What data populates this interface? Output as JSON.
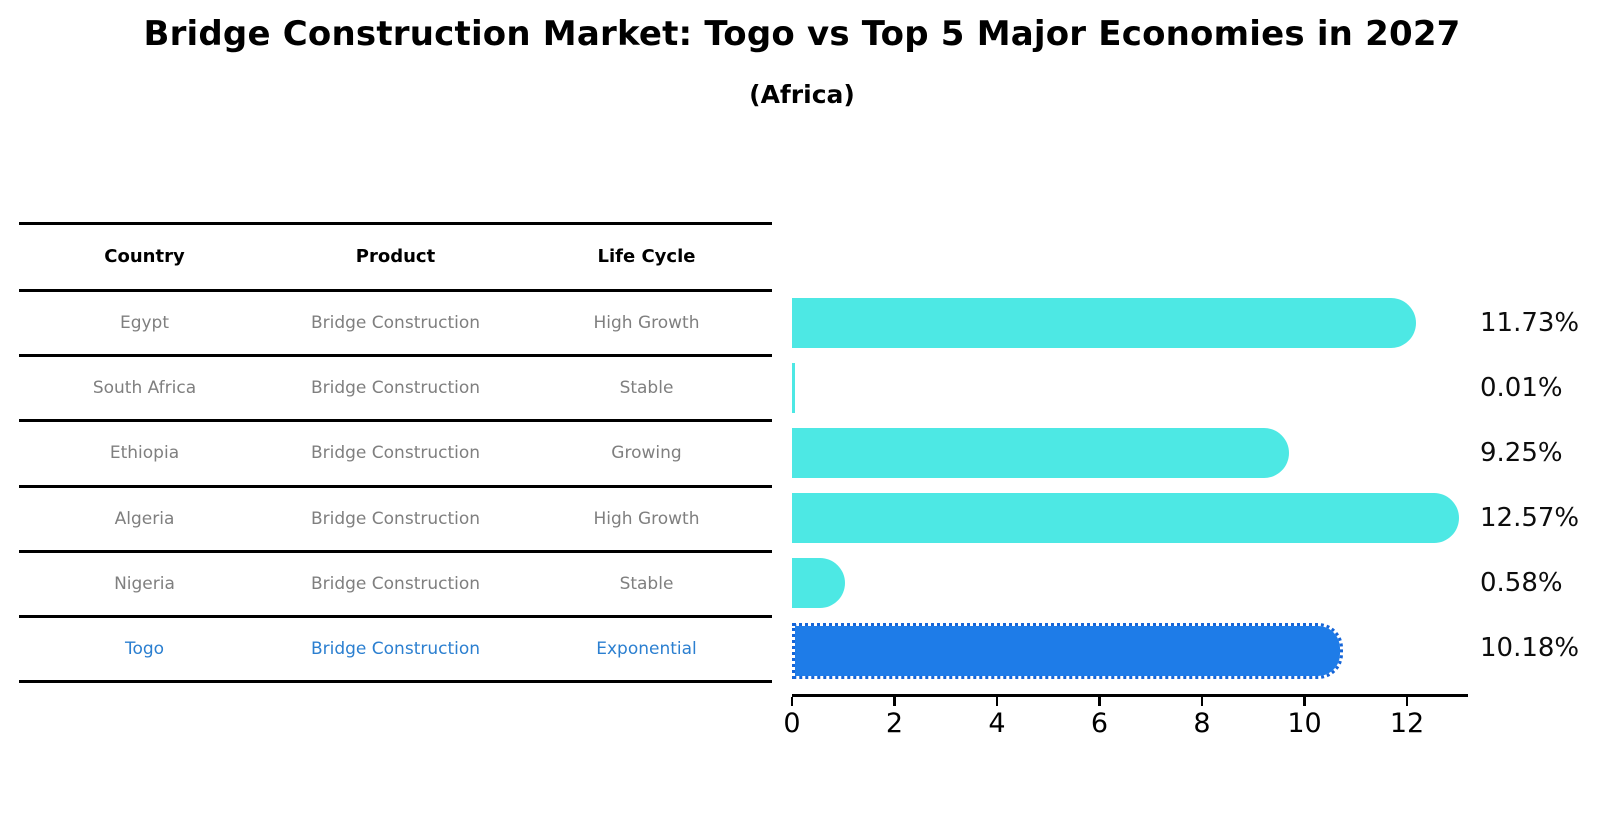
{
  "title": "Bridge Construction Market: Togo vs Top 5 Major Economies in 2027",
  "subtitle": "(Africa)",
  "table": {
    "headers": [
      "Country",
      "Product",
      "Life Cycle"
    ],
    "rows": [
      {
        "country": "Egypt",
        "product": "Bridge Construction",
        "life_cycle": "High Growth"
      },
      {
        "country": "South Africa",
        "product": "Bridge Construction",
        "life_cycle": "Stable"
      },
      {
        "country": "Ethiopia",
        "product": "Bridge Construction",
        "life_cycle": "Growing"
      },
      {
        "country": "Algeria",
        "product": "Bridge Construction",
        "life_cycle": "High Growth"
      },
      {
        "country": "Nigeria",
        "product": "Bridge Construction",
        "life_cycle": "Stable"
      },
      {
        "country": "Togo",
        "product": "Bridge Construction",
        "life_cycle": "Exponential"
      }
    ],
    "highlight_row": "Togo"
  },
  "chart_data": {
    "type": "bar",
    "orientation": "horizontal",
    "categories": [
      "Egypt",
      "South Africa",
      "Ethiopia",
      "Algeria",
      "Nigeria",
      "Togo"
    ],
    "values": [
      11.73,
      0.01,
      9.25,
      12.57,
      0.58,
      10.18
    ],
    "value_labels": [
      "11.73%",
      "0.01%",
      "9.25%",
      "12.57%",
      "0.58%",
      "10.18%"
    ],
    "x_ticks": [
      0,
      2,
      4,
      6,
      8,
      10,
      12
    ],
    "xlim": [
      0,
      13.17
    ],
    "title": "Bridge Construction Market: Togo vs Top 5 Major Economies in 2027 (Africa)",
    "xlabel": "",
    "ylabel": "",
    "grid": false,
    "legend": false,
    "highlight_index": 5,
    "bar_style": "rounded-right-cap, highlighted bar has dotted edge"
  },
  "colors": {
    "bar-color": "#4de8e4",
    "togo-bar": "#1e7ce8",
    "togo-border": "#1565d8",
    "togo-text": "#2b7fd0",
    "text": "#000000",
    "muted-text": "#7f7f7f"
  }
}
